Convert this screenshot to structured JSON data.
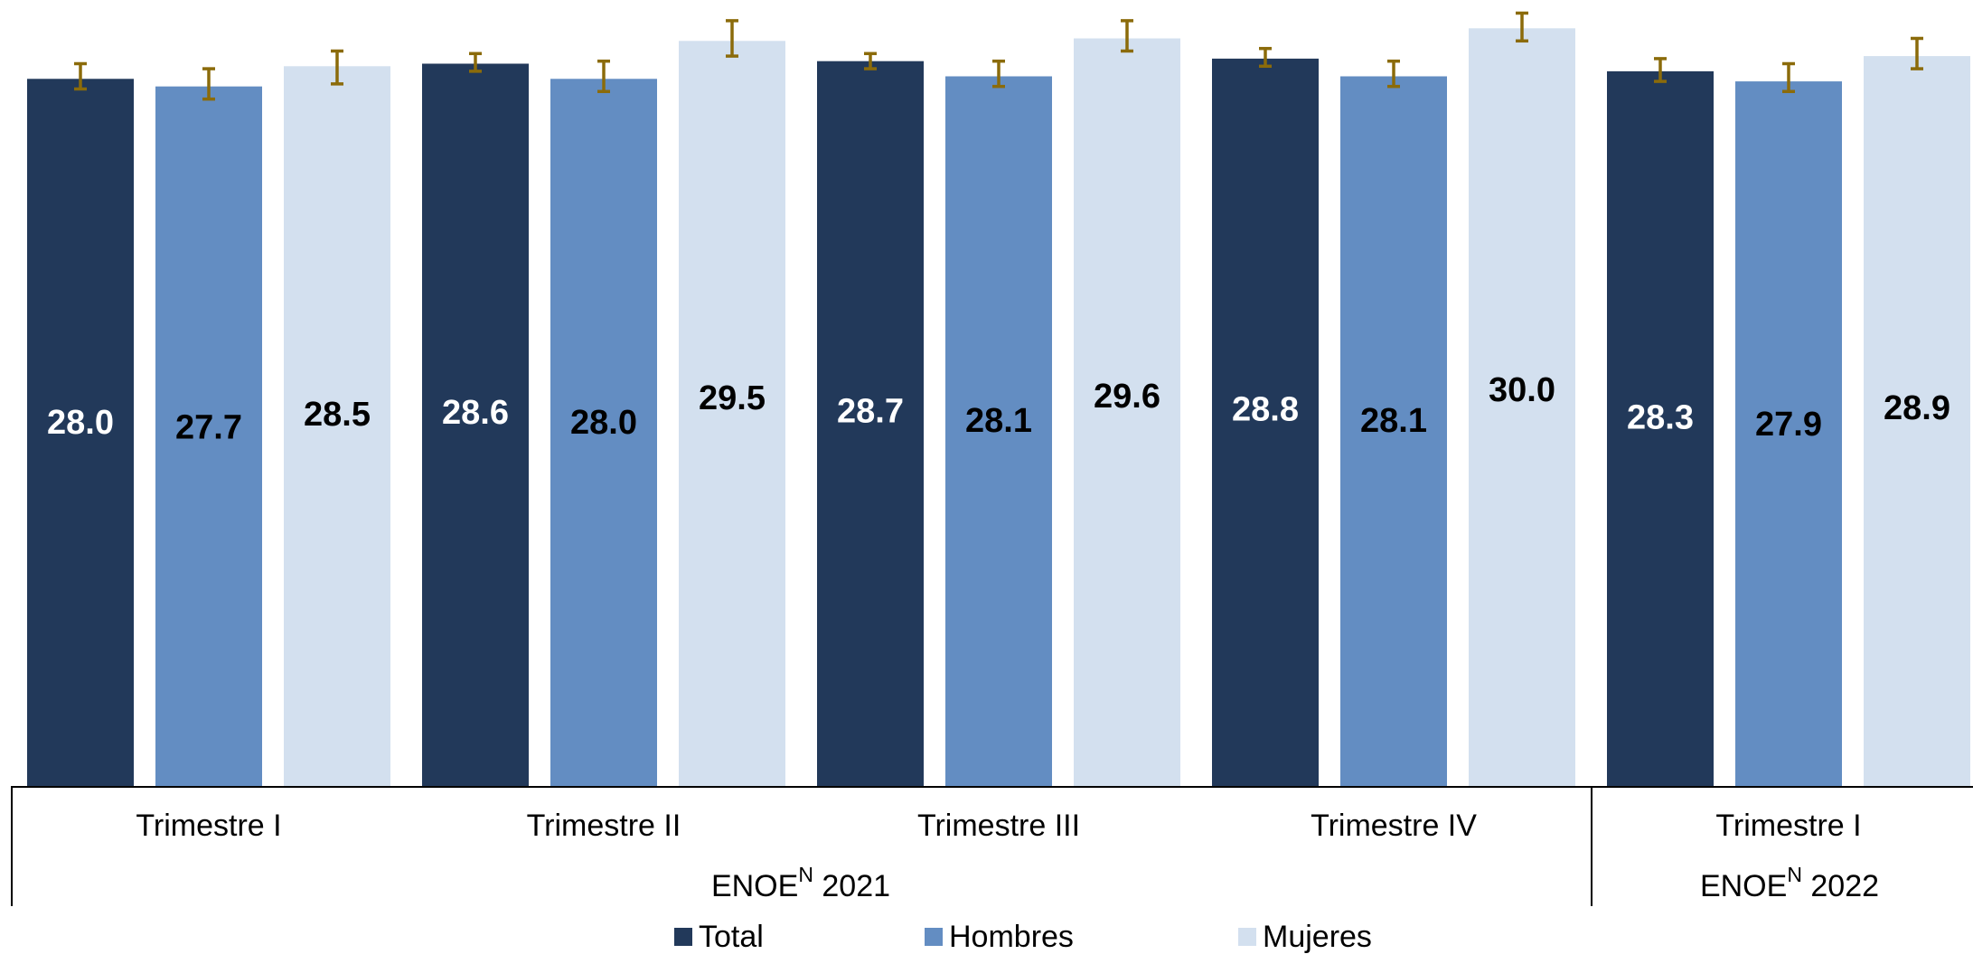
{
  "chart_data": {
    "type": "bar",
    "title": "",
    "xlabel": "",
    "ylabel": "",
    "ylim": [
      0,
      31.5
    ],
    "grid": false,
    "legend_placement": "bottom-center",
    "categories": [
      "Trimestre I",
      "Trimestre II",
      "Trimestre III",
      "Trimestre IV",
      "Trimestre I"
    ],
    "groups": [
      {
        "label": "ENOE",
        "superscript": "N",
        "year": "2021"
      },
      {
        "label": "ENOE",
        "superscript": "N",
        "year": "2022"
      }
    ],
    "series": [
      {
        "name": "Total",
        "color": "#22395a",
        "label_color": "#ffffff",
        "values": [
          28.0,
          28.6,
          28.7,
          28.8,
          28.3
        ],
        "value_labels": [
          "28.0",
          "28.6",
          "28.7",
          "28.8",
          "28.3"
        ],
        "error_low": [
          27.6,
          28.3,
          28.4,
          28.5,
          27.9
        ],
        "error_high": [
          28.6,
          29.0,
          29.0,
          29.2,
          28.8
        ]
      },
      {
        "name": "Hombres",
        "color": "#638dc2",
        "label_color": "#000000",
        "values": [
          27.7,
          28.0,
          28.1,
          28.1,
          27.9
        ],
        "value_labels": [
          "27.7",
          "28.0",
          "28.1",
          "28.1",
          "27.9"
        ],
        "error_low": [
          27.2,
          27.5,
          27.7,
          27.7,
          27.5
        ],
        "error_high": [
          28.4,
          28.7,
          28.7,
          28.7,
          28.6
        ]
      },
      {
        "name": "Mujeres",
        "color": "#d3e0ef",
        "label_color": "#000000",
        "values": [
          28.5,
          29.5,
          29.6,
          30.0,
          28.9
        ],
        "value_labels": [
          "28.5",
          "29.5",
          "29.6",
          "30.0",
          "28.9"
        ],
        "error_low": [
          27.8,
          28.9,
          29.1,
          29.5,
          28.4
        ],
        "error_high": [
          29.1,
          30.3,
          30.3,
          30.6,
          29.6
        ]
      }
    ],
    "error_bar_color": "#8b6b0a"
  }
}
